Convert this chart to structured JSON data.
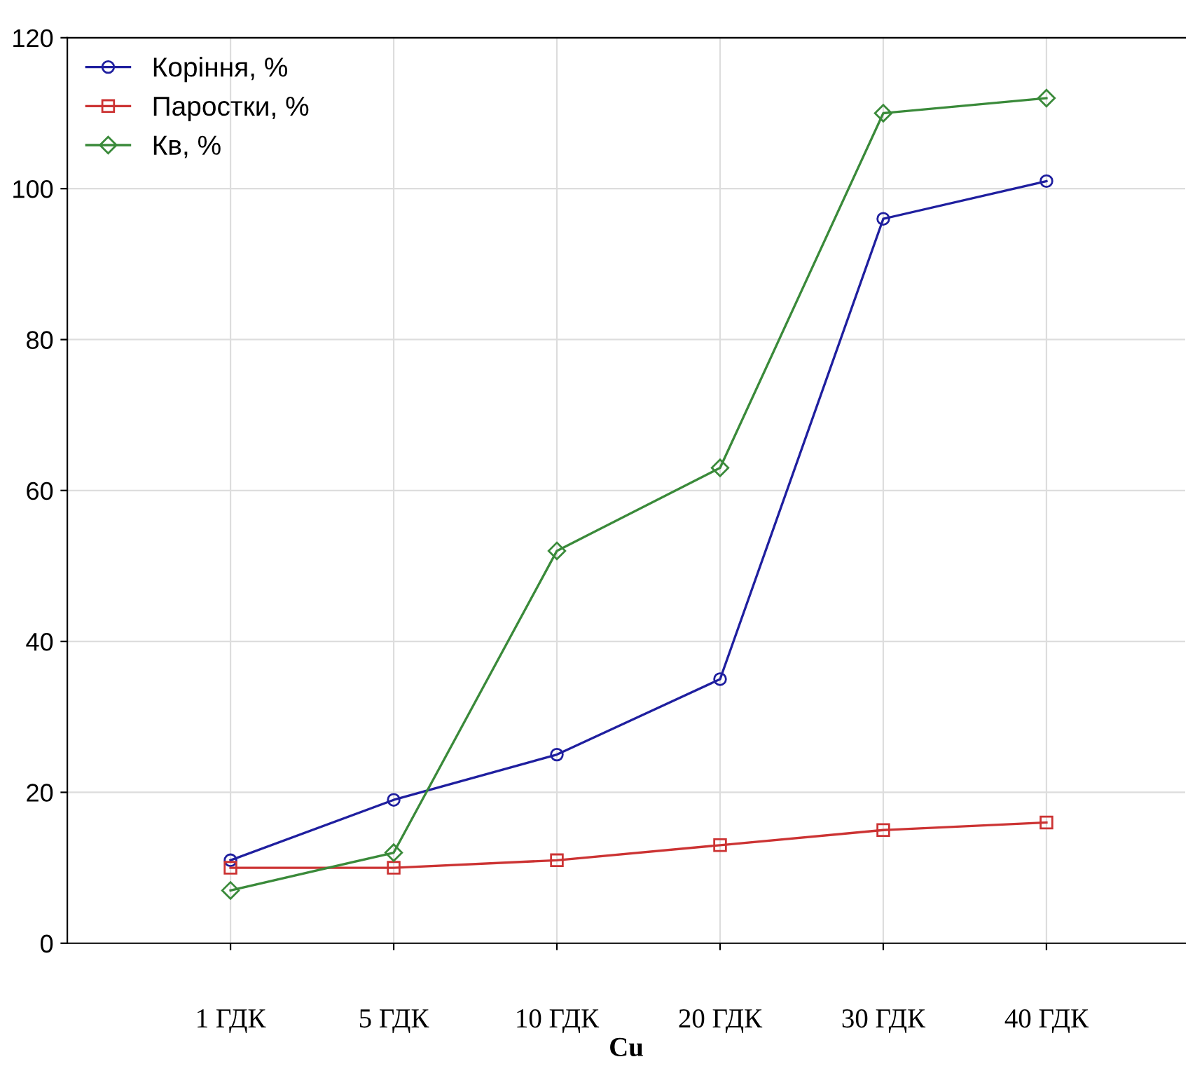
{
  "chart_data": {
    "type": "line",
    "xlabel": "Cu",
    "categories": [
      "1 ГДК",
      "5 ГДК",
      "10 ГДК",
      "20 ГДК",
      "30 ГДК",
      "40 ГДК"
    ],
    "series": [
      {
        "name": "Коріння, %",
        "color": "#1f1f9f",
        "marker": "circle",
        "values": [
          11,
          19,
          25,
          35,
          96,
          101
        ]
      },
      {
        "name": "Паростки, %",
        "color": "#cc3333",
        "marker": "square",
        "values": [
          10,
          10,
          11,
          13,
          15,
          16
        ]
      },
      {
        "name": "Кв, %",
        "color": "#3a8a3a",
        "marker": "diamond",
        "values": [
          7,
          12,
          52,
          63,
          110,
          112
        ]
      }
    ],
    "ylim": [
      0,
      120
    ],
    "yticks": [
      0,
      20,
      40,
      60,
      80,
      100,
      120
    ],
    "grid": true,
    "legend": "top left",
    "line_style": "solid"
  }
}
